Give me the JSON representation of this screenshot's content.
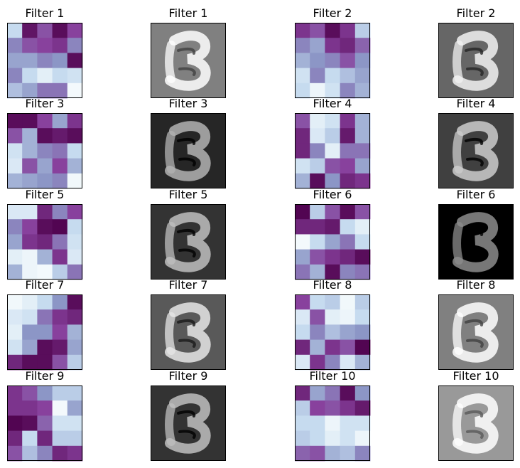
{
  "chart_data": {
    "type": "heatmap",
    "layout": {
      "rows": 5,
      "cols": 4
    },
    "panel_kinds": [
      "filter-kernel",
      "filter-response"
    ],
    "kernel_colormap": [
      "#f7fcfd",
      "#c6dbef",
      "#8c96c6",
      "#88419d",
      "#4d004b"
    ],
    "response_colormap": [
      "#000000",
      "#ffffff"
    ],
    "panels": [
      {
        "title": "Filter 1",
        "kind": "kernel",
        "values": [
          [
            0.25,
            0.92,
            0.7,
            0.95,
            0.75
          ],
          [
            0.55,
            0.7,
            0.75,
            0.8,
            0.55
          ],
          [
            0.45,
            0.45,
            0.55,
            0.5,
            0.95
          ],
          [
            0.55,
            0.25,
            0.1,
            0.25,
            0.2
          ],
          [
            0.35,
            0.45,
            0.6,
            0.6,
            0.02
          ]
        ]
      },
      {
        "title": "Filter 1",
        "kind": "response",
        "background": 0.5
      },
      {
        "title": "Filter 2",
        "kind": "kernel",
        "values": [
          [
            0.8,
            0.7,
            0.95,
            0.8,
            0.3
          ],
          [
            0.55,
            0.45,
            0.8,
            0.85,
            0.65
          ],
          [
            0.4,
            0.5,
            0.55,
            0.7,
            0.5
          ],
          [
            0.2,
            0.55,
            0.25,
            0.35,
            0.45
          ],
          [
            0.25,
            0.05,
            0.2,
            0.55,
            0.4
          ]
        ]
      },
      {
        "title": "Filter 2",
        "kind": "response",
        "background": 0.4
      },
      {
        "title": "Filter 3",
        "kind": "kernel",
        "values": [
          [
            0.95,
            0.95,
            0.75,
            0.45,
            0.8
          ],
          [
            0.7,
            0.4,
            0.95,
            0.9,
            0.95
          ],
          [
            0.2,
            0.4,
            0.55,
            0.6,
            0.25
          ],
          [
            0.15,
            0.7,
            0.45,
            0.75,
            0.4
          ],
          [
            0.4,
            0.45,
            0.5,
            0.55,
            0.03
          ]
        ]
      },
      {
        "title": "Filter 3",
        "kind": "response",
        "background": 0.15
      },
      {
        "title": "Filter 4",
        "kind": "kernel",
        "values": [
          [
            0.7,
            0.1,
            0.2,
            0.8,
            0.4
          ],
          [
            0.85,
            0.15,
            0.3,
            0.9,
            0.4
          ],
          [
            0.85,
            0.55,
            0.1,
            0.6,
            0.6
          ],
          [
            0.2,
            0.3,
            0.7,
            0.75,
            0.45
          ],
          [
            0.4,
            0.95,
            0.5,
            0.85,
            0.8
          ]
        ]
      },
      {
        "title": "Filter 4",
        "kind": "response",
        "background": 0.25
      },
      {
        "title": "Filter 5",
        "kind": "kernel",
        "values": [
          [
            0.15,
            0.15,
            0.85,
            0.55,
            0.75
          ],
          [
            0.55,
            0.75,
            0.95,
            0.98,
            0.25
          ],
          [
            0.45,
            0.8,
            0.85,
            0.6,
            0.2
          ],
          [
            0.1,
            0.05,
            0.4,
            0.8,
            0.15
          ],
          [
            0.4,
            0.05,
            0.02,
            0.3,
            0.6
          ]
        ]
      },
      {
        "title": "Filter 5",
        "kind": "response",
        "background": 0.2
      },
      {
        "title": "Filter 6",
        "kind": "kernel",
        "values": [
          [
            0.98,
            0.3,
            0.7,
            0.95,
            0.7
          ],
          [
            0.85,
            0.85,
            0.9,
            0.25,
            0.1
          ],
          [
            0.02,
            0.25,
            0.45,
            0.6,
            0.25
          ],
          [
            0.45,
            0.7,
            0.8,
            0.85,
            0.95
          ],
          [
            0.6,
            0.4,
            0.95,
            0.55,
            0.6
          ]
        ]
      },
      {
        "title": "Filter 6",
        "kind": "response",
        "background": 0.0
      },
      {
        "title": "Filter 7",
        "kind": "kernel",
        "values": [
          [
            0.03,
            0.1,
            0.25,
            0.5,
            0.95
          ],
          [
            0.15,
            0.2,
            0.6,
            0.8,
            0.85
          ],
          [
            0.1,
            0.5,
            0.5,
            0.75,
            0.4
          ],
          [
            0.2,
            0.45,
            0.95,
            0.9,
            0.45
          ],
          [
            0.85,
            0.95,
            0.95,
            0.7,
            0.3
          ]
        ]
      },
      {
        "title": "Filter 7",
        "kind": "response",
        "background": 0.35
      },
      {
        "title": "Filter 8",
        "kind": "kernel",
        "values": [
          [
            0.75,
            0.25,
            0.3,
            0.03,
            0.3
          ],
          [
            0.15,
            0.7,
            0.1,
            0.05,
            0.25
          ],
          [
            0.25,
            0.55,
            0.35,
            0.45,
            0.5
          ],
          [
            0.85,
            0.4,
            0.8,
            0.7,
            0.98
          ],
          [
            0.15,
            0.8,
            0.55,
            0.15,
            0.4
          ]
        ]
      },
      {
        "title": "Filter 8",
        "kind": "response",
        "background": 0.5
      },
      {
        "title": "Filter 9",
        "kind": "kernel",
        "values": [
          [
            0.8,
            0.7,
            0.5,
            0.3,
            0.3
          ],
          [
            0.8,
            0.8,
            0.75,
            0.02,
            0.45
          ],
          [
            0.98,
            0.95,
            0.65,
            0.2,
            0.2
          ],
          [
            0.85,
            0.25,
            0.85,
            0.3,
            0.3
          ],
          [
            0.7,
            0.35,
            0.55,
            0.85,
            0.8
          ]
        ]
      },
      {
        "title": "Filter 9",
        "kind": "response",
        "background": 0.2
      },
      {
        "title": "Filter 10",
        "kind": "kernel",
        "values": [
          [
            0.85,
            0.45,
            0.6,
            0.95,
            0.5
          ],
          [
            0.3,
            0.75,
            0.7,
            0.8,
            0.9
          ],
          [
            0.25,
            0.25,
            0.05,
            0.2,
            0.2
          ],
          [
            0.3,
            0.25,
            0.1,
            0.2,
            0.05
          ],
          [
            0.65,
            0.7,
            0.4,
            0.35,
            0.55
          ]
        ]
      },
      {
        "title": "Filter 10",
        "kind": "response",
        "background": 0.6
      }
    ]
  }
}
